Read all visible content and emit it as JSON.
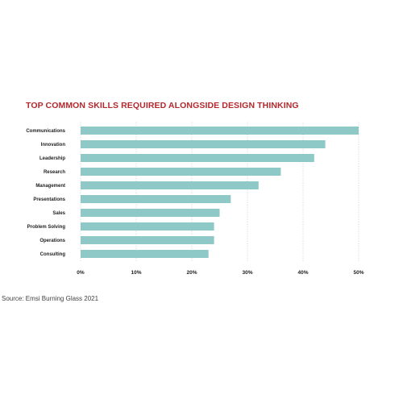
{
  "chart_data": {
    "type": "bar",
    "orientation": "horizontal",
    "title": "TOP COMMON SKILLS REQUIRED ALONGSIDE DESIGN THINKING",
    "categories": [
      "Communications",
      "Innovation",
      "Leadership",
      "Research",
      "Management",
      "Presentations",
      "Sales",
      "Problem Solving",
      "Operations",
      "Consulting"
    ],
    "values": [
      50,
      44,
      42,
      36,
      32,
      27,
      25,
      24,
      24,
      23
    ],
    "x_ticks": [
      "0%",
      "10%",
      "20%",
      "30%",
      "40%",
      "50%"
    ],
    "xlim": [
      0,
      50
    ],
    "xlabel": "",
    "ylabel": "",
    "grid": "vertical dashed",
    "bar_color": "#8ec9c7",
    "title_color": "#b3282d"
  },
  "source": "Source: Emsi Burning Glass 2021"
}
